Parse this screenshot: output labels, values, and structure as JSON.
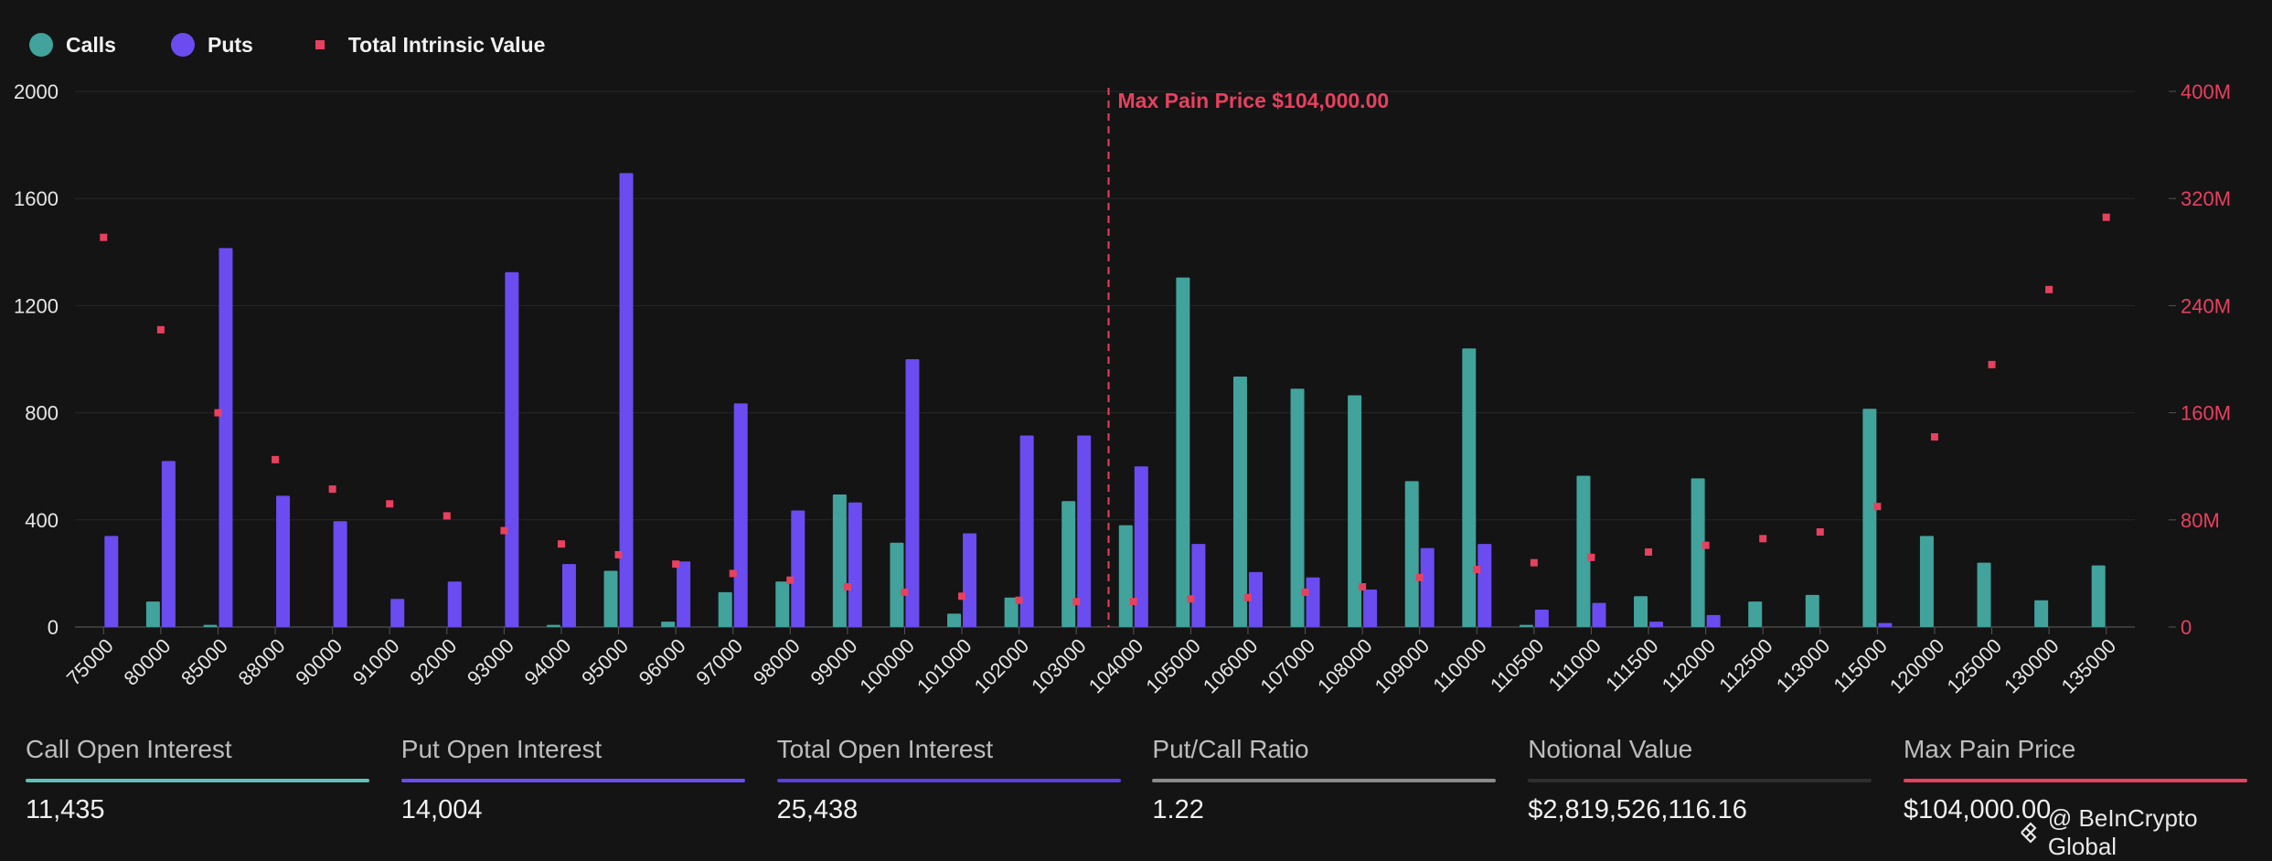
{
  "legend": {
    "calls_label": "Calls",
    "puts_label": "Puts",
    "tiv_label": "Total Intrinsic Value"
  },
  "colors": {
    "calls": "#41a39b",
    "puts": "#6a4cf0",
    "tiv": "#e8405f",
    "max_pain": "#e8405f",
    "background": "#141414",
    "grid": "#262626"
  },
  "chart_data": {
    "type": "bar",
    "x_axis_label": "",
    "left_axis": {
      "ylim": [
        0,
        2000
      ],
      "ticks": [
        0,
        400,
        800,
        1200,
        1600,
        2000
      ]
    },
    "right_axis": {
      "ylim": [
        0,
        400
      ],
      "ticks": [
        "0",
        "80M",
        "160M",
        "240M",
        "320M",
        "400M"
      ],
      "unit": "M"
    },
    "categories": [
      "75000",
      "80000",
      "85000",
      "88000",
      "90000",
      "91000",
      "92000",
      "93000",
      "94000",
      "95000",
      "96000",
      "97000",
      "98000",
      "99000",
      "100000",
      "101000",
      "102000",
      "103000",
      "104000",
      "105000",
      "106000",
      "107000",
      "108000",
      "109000",
      "110000",
      "110500",
      "111000",
      "111500",
      "112000",
      "112500",
      "113000",
      "115000",
      "120000",
      "125000",
      "130000",
      "135000"
    ],
    "series": [
      {
        "name": "Calls",
        "type": "bar",
        "values": [
          0,
          95,
          8,
          0,
          0,
          0,
          0,
          0,
          8,
          210,
          20,
          130,
          170,
          495,
          315,
          50,
          110,
          470,
          380,
          1305,
          935,
          890,
          865,
          545,
          1040,
          8,
          565,
          115,
          555,
          95,
          120,
          815,
          340,
          240,
          100,
          230
        ]
      },
      {
        "name": "Puts",
        "type": "bar",
        "values": [
          340,
          620,
          1415,
          490,
          395,
          105,
          170,
          1325,
          235,
          1695,
          245,
          835,
          435,
          465,
          1000,
          350,
          715,
          715,
          600,
          310,
          205,
          185,
          140,
          295,
          310,
          65,
          90,
          20,
          45,
          0,
          0,
          15,
          0,
          0,
          0,
          0
        ]
      },
      {
        "name": "Total Intrinsic Value",
        "type": "scatter",
        "axis": "right",
        "values": [
          291,
          222,
          160,
          125,
          103,
          92,
          83,
          72,
          62,
          54,
          47,
          40,
          35,
          30,
          26,
          23,
          20,
          19,
          19,
          21,
          22,
          26,
          30,
          37,
          43,
          48,
          52,
          56,
          61,
          66,
          71,
          90,
          142,
          196,
          252,
          306
        ]
      }
    ],
    "annotation": {
      "label": "Max Pain Price $104,000.00",
      "category": "104000"
    },
    "grid": true,
    "legend_position": "top-left"
  },
  "stats": [
    {
      "label": "Call Open Interest",
      "value": "11,435",
      "color": "#5ec2b9"
    },
    {
      "label": "Put Open Interest",
      "value": "14,004",
      "color": "#6a4cf0"
    },
    {
      "label": "Total Open Interest",
      "value": "25,438",
      "color": "#5b3fe0"
    },
    {
      "label": "Put/Call Ratio",
      "value": "1.22",
      "color": "#8a8a8a"
    },
    {
      "label": "Notional Value",
      "value": "$2,819,526,116.16",
      "color": "#2e2e2e"
    },
    {
      "label": "Max Pain Price",
      "value": "$104,000.00",
      "color": "#e8405f"
    }
  ],
  "watermark": "@ BeInCrypto Global"
}
